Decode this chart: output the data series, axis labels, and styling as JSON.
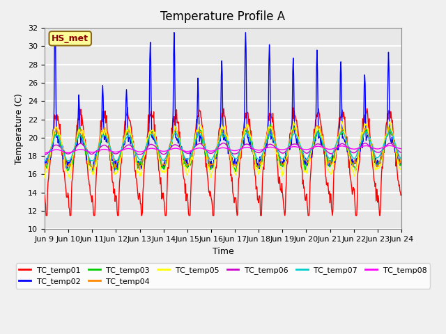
{
  "title": "Temperature Profile A",
  "xlabel": "Time",
  "ylabel": "Temperature (C)",
  "ylim": [
    10,
    32
  ],
  "yticks": [
    10,
    12,
    14,
    16,
    18,
    20,
    22,
    24,
    26,
    28,
    30,
    32
  ],
  "xtick_labels": [
    "Jun 9",
    "Jun 10",
    "Jun 11",
    "Jun 12",
    "Jun 13",
    "Jun 14",
    "Jun 15",
    "Jun 16",
    "Jun 17",
    "Jun 18",
    "Jun 19",
    "Jun 20",
    "Jun 21",
    "Jun 22",
    "Jun 23",
    "Jun 24"
  ],
  "series_colors": {
    "TC_temp01": "#FF0000",
    "TC_temp02": "#0000FF",
    "TC_temp03": "#00CC00",
    "TC_temp04": "#FF8800",
    "TC_temp05": "#FFFF00",
    "TC_temp06": "#CC00CC",
    "TC_temp07": "#00CCCC",
    "TC_temp08": "#FF00FF"
  },
  "annotation_text": "HS_met",
  "annotation_color": "#8B0000",
  "annotation_bg": "#FFFF99",
  "background_color": "#E8E8E8",
  "grid_color": "#FFFFFF",
  "title_fontsize": 12,
  "axis_fontsize": 9,
  "tick_fontsize": 8,
  "legend_fontsize": 8
}
